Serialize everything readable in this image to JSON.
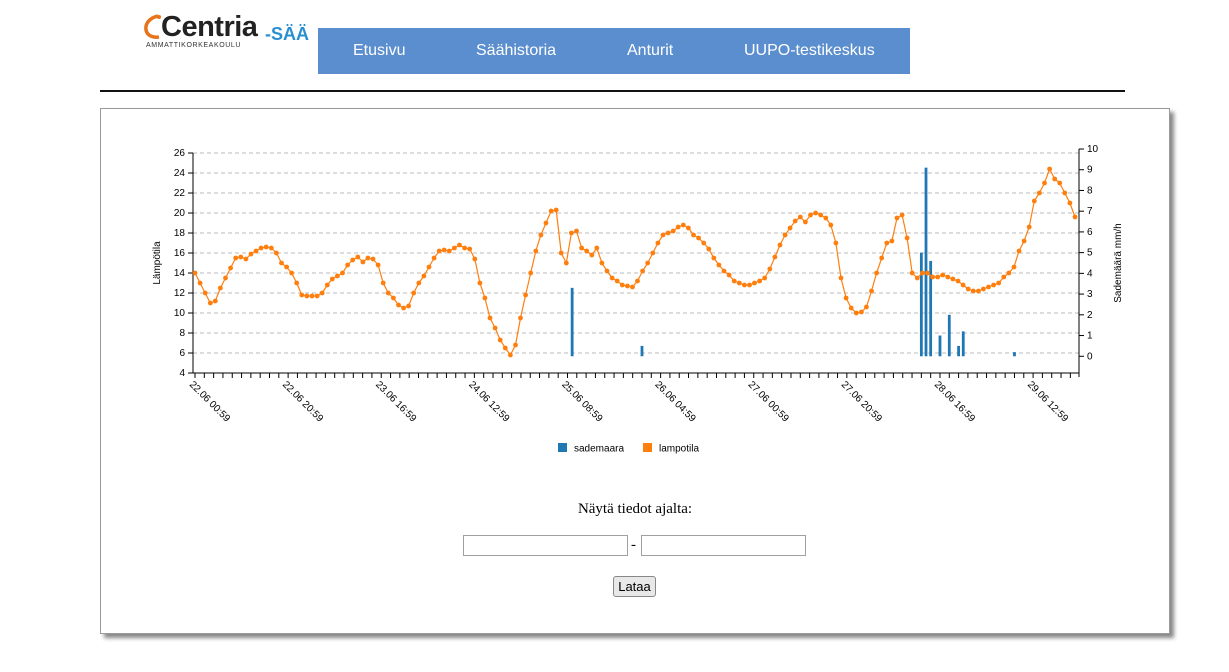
{
  "logo": {
    "name": "Centria",
    "suffix": "-SÄÄ",
    "subtitle": "AMMATTIKORKEAKOULU"
  },
  "nav": {
    "items": [
      {
        "label": "Etusivu"
      },
      {
        "label": "Säähistoria"
      },
      {
        "label": "Anturit"
      },
      {
        "label": "UUPO-testikeskus"
      }
    ]
  },
  "form": {
    "label": "Näytä tiedot ajalta:",
    "start_value": "",
    "end_value": "",
    "separator": "-",
    "button_label": "Lataa"
  },
  "colors": {
    "temperature": "#ff7f0e",
    "rain": "#1f77b4",
    "nav_bg": "#5b8ece",
    "logo_accent": "#e8731a",
    "logo_suffix": "#2a8fd0"
  },
  "chart_data": {
    "type": "line",
    "ylabel": "Lämpötila",
    "y2label": "Sademäärä mm/h",
    "ylim": [
      4,
      26
    ],
    "yticks": [
      4,
      6,
      8,
      10,
      12,
      14,
      16,
      18,
      20,
      22,
      24,
      26
    ],
    "y2lim": [
      -1,
      10
    ],
    "y2ticks": [
      0,
      1,
      2,
      3,
      4,
      5,
      6,
      7,
      8,
      9,
      10
    ],
    "grid": true,
    "legend_position": "bottom-center",
    "x_tick_labels": [
      "22.06 00:59",
      "22.06 20:59",
      "23.06 16:59",
      "24.06 12:59",
      "25.06 08:59",
      "26.06 04:59",
      "27.06 00:59",
      "27.06 20:59",
      "28.06 16:59",
      "29.06 12:59"
    ],
    "x_start": "22.06 00:59",
    "x_step_hours": 1,
    "series": [
      {
        "name": "sademaara",
        "kind": "bar",
        "points": [
          {
            "x": "25.06 09:59",
            "y": 3.3
          },
          {
            "x": "26.06 00:59",
            "y": 0.5
          },
          {
            "x": "28.06 12:59",
            "y": 5.0
          },
          {
            "x": "28.06 13:59",
            "y": 9.1
          },
          {
            "x": "28.06 14:59",
            "y": 4.6
          },
          {
            "x": "28.06 16:59",
            "y": 1.0
          },
          {
            "x": "28.06 18:59",
            "y": 2.0
          },
          {
            "x": "28.06 20:59",
            "y": 0.5
          },
          {
            "x": "28.06 21:59",
            "y": 1.2
          },
          {
            "x": "29.06 08:59",
            "y": 0.2
          }
        ]
      },
      {
        "name": "lampotila",
        "kind": "line",
        "sample_every_hours": 2,
        "values": [
          14.0,
          13.0,
          12.0,
          11.0,
          11.2,
          12.5,
          13.5,
          14.5,
          15.5,
          15.6,
          15.4,
          15.9,
          16.2,
          16.5,
          16.6,
          16.5,
          16.0,
          15.0,
          14.6,
          14.0,
          13.0,
          11.8,
          11.7,
          11.7,
          11.7,
          12.0,
          12.8,
          13.4,
          13.7,
          14.0,
          14.8,
          15.3,
          15.6,
          15.1,
          15.5,
          15.4,
          14.8,
          13.0,
          12.0,
          11.5,
          10.8,
          10.5,
          10.7,
          12.0,
          13.0,
          13.7,
          14.6,
          15.5,
          16.2,
          16.3,
          16.2,
          16.5,
          16.8,
          16.5,
          16.4,
          15.4,
          13.0,
          11.5,
          9.5,
          8.5,
          7.3,
          6.5,
          5.8,
          6.8,
          9.5,
          11.8,
          14.0,
          16.2,
          17.8,
          19.0,
          20.2,
          20.3,
          16.0,
          15.0,
          18.0,
          18.2,
          16.5,
          16.2,
          15.8,
          16.5,
          15.0,
          14.2,
          13.5,
          13.2,
          12.8,
          12.7,
          12.6,
          13.2,
          14.2,
          15.0,
          16.0,
          17.0,
          17.8,
          18.0,
          18.2,
          18.6,
          18.8,
          18.5,
          17.8,
          17.5,
          17.0,
          16.4,
          15.5,
          14.8,
          14.2,
          13.8,
          13.2,
          13.0,
          12.8,
          12.8,
          13.0,
          13.2,
          13.5,
          14.4,
          15.6,
          16.8,
          17.8,
          18.5,
          19.2,
          19.6,
          19.1,
          19.8,
          20.0,
          19.8,
          19.5,
          18.8,
          17.0,
          13.5,
          11.5,
          10.5,
          10.0,
          10.1,
          10.6,
          12.2,
          14.0,
          15.5,
          17.0,
          17.2,
          19.5,
          19.8,
          17.5,
          14.0,
          13.5,
          14.0,
          14.0,
          13.6,
          13.6,
          13.8,
          13.6,
          13.4,
          13.2,
          12.8,
          12.4,
          12.2,
          12.2,
          12.4,
          12.6,
          12.8,
          13.0,
          13.6,
          14.0,
          14.6,
          16.2,
          17.2,
          18.6,
          21.2,
          22.0,
          23.0,
          24.4,
          23.4,
          23.0,
          22.0,
          21.0,
          19.6
        ]
      }
    ]
  }
}
